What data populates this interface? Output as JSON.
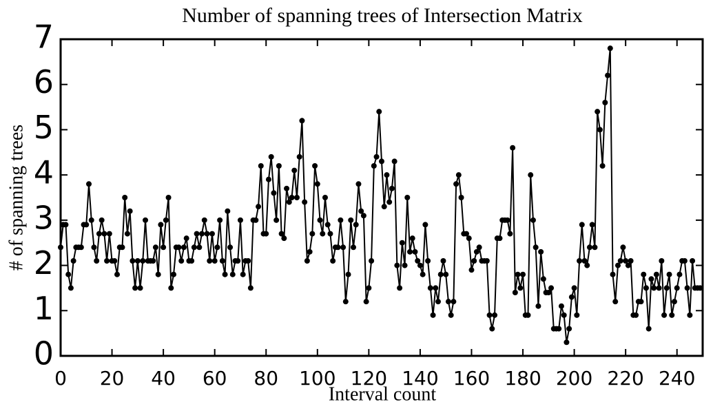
{
  "chart_data": {
    "type": "line",
    "title": "Number of spanning trees of Intersection Matrix",
    "xlabel": "Interval count",
    "ylabel": "# of spanning trees",
    "x": [
      0,
      1,
      2,
      3,
      4,
      5,
      6,
      7,
      8,
      9,
      10,
      11,
      12,
      13,
      14,
      15,
      16,
      17,
      18,
      19,
      20,
      21,
      22,
      23,
      24,
      25,
      26,
      27,
      28,
      29,
      30,
      31,
      32,
      33,
      34,
      35,
      36,
      37,
      38,
      39,
      40,
      41,
      42,
      43,
      44,
      45,
      46,
      47,
      48,
      49,
      50,
      51,
      52,
      53,
      54,
      55,
      56,
      57,
      58,
      59,
      60,
      61,
      62,
      63,
      64,
      65,
      66,
      67,
      68,
      69,
      70,
      71,
      72,
      73,
      74,
      75,
      76,
      77,
      78,
      79,
      80,
      81,
      82,
      83,
      84,
      85,
      86,
      87,
      88,
      89,
      90,
      91,
      92,
      93,
      94,
      95,
      96,
      97,
      98,
      99,
      100,
      101,
      102,
      103,
      104,
      105,
      106,
      107,
      108,
      109,
      110,
      111,
      112,
      113,
      114,
      115,
      116,
      117,
      118,
      119,
      120,
      121,
      122,
      123,
      124,
      125,
      126,
      127,
      128,
      129,
      130,
      131,
      132,
      133,
      134,
      135,
      136,
      137,
      138,
      139,
      140,
      141,
      142,
      143,
      144,
      145,
      146,
      147,
      148,
      149,
      150,
      151,
      152,
      153,
      154,
      155,
      156,
      157,
      158,
      159,
      160,
      161,
      162,
      163,
      164,
      165,
      166,
      167,
      168,
      169,
      170,
      171,
      172,
      173,
      174,
      175,
      176,
      177,
      178,
      179,
      180,
      181,
      182,
      183,
      184,
      185,
      186,
      187,
      188,
      189,
      190,
      191,
      192,
      193,
      194,
      195,
      196,
      197,
      198,
      199,
      200,
      201,
      202,
      203,
      204,
      205,
      206,
      207,
      208,
      209,
      210,
      211,
      212,
      213,
      214,
      215,
      216,
      217,
      218,
      219,
      220,
      221,
      222,
      223,
      224,
      225,
      226,
      227,
      228,
      229,
      230,
      231,
      232,
      233,
      234,
      235,
      236,
      237,
      238,
      239,
      240,
      241,
      242,
      243,
      244,
      245,
      246,
      247,
      248,
      249
    ],
    "series": [
      {
        "name": "spanning trees",
        "color": "#000000",
        "values": [
          2.4,
          2.9,
          2.9,
          1.8,
          1.5,
          2.1,
          2.4,
          2.4,
          2.4,
          2.9,
          2.9,
          3.8,
          3.0,
          2.4,
          2.1,
          2.7,
          3.0,
          2.7,
          2.1,
          2.7,
          2.1,
          2.1,
          1.8,
          2.4,
          2.4,
          3.5,
          2.7,
          3.2,
          2.1,
          1.5,
          2.1,
          1.5,
          2.1,
          3.0,
          2.1,
          2.1,
          2.1,
          2.4,
          1.8,
          2.9,
          2.4,
          3.0,
          3.5,
          1.5,
          1.8,
          2.4,
          2.4,
          2.1,
          2.4,
          2.6,
          2.1,
          2.1,
          2.4,
          2.7,
          2.4,
          2.7,
          3.0,
          2.7,
          2.1,
          2.7,
          2.1,
          2.4,
          3.0,
          2.1,
          1.8,
          3.2,
          2.4,
          1.8,
          2.1,
          2.1,
          3.0,
          1.8,
          2.1,
          2.1,
          1.5,
          3.0,
          3.0,
          3.3,
          4.2,
          2.7,
          2.7,
          3.9,
          4.4,
          3.6,
          3.0,
          4.2,
          2.7,
          2.6,
          3.7,
          3.4,
          3.5,
          4.1,
          3.5,
          4.4,
          5.2,
          3.4,
          2.1,
          2.3,
          2.7,
          4.2,
          3.8,
          3.0,
          2.7,
          3.5,
          2.9,
          2.7,
          2.1,
          2.4,
          2.4,
          3.0,
          2.4,
          1.2,
          1.8,
          3.0,
          2.4,
          2.9,
          3.8,
          3.2,
          3.1,
          1.2,
          1.5,
          2.1,
          4.2,
          4.4,
          5.4,
          4.3,
          3.3,
          4.0,
          3.4,
          3.7,
          4.3,
          2.0,
          1.5,
          2.5,
          2.0,
          3.5,
          2.3,
          2.6,
          2.3,
          2.1,
          2.0,
          1.8,
          2.9,
          2.1,
          1.5,
          0.9,
          1.5,
          1.2,
          1.8,
          2.1,
          1.8,
          1.2,
          0.9,
          1.2,
          3.8,
          4.0,
          3.5,
          2.7,
          2.7,
          2.6,
          1.9,
          2.1,
          2.3,
          2.4,
          2.1,
          2.1,
          2.1,
          0.9,
          0.6,
          0.9,
          2.6,
          2.6,
          3.0,
          3.0,
          3.0,
          2.7,
          4.6,
          1.4,
          1.8,
          1.5,
          1.8,
          0.9,
          0.9,
          4.0,
          3.0,
          2.4,
          1.1,
          2.3,
          1.7,
          1.4,
          1.4,
          1.5,
          0.6,
          0.6,
          0.6,
          1.1,
          0.9,
          0.3,
          0.6,
          1.3,
          1.5,
          0.9,
          2.1,
          2.9,
          2.1,
          2.0,
          2.4,
          2.9,
          2.4,
          5.4,
          5.0,
          4.2,
          5.6,
          6.2,
          6.8,
          1.8,
          1.2,
          2.0,
          2.1,
          2.4,
          2.1,
          2.0,
          2.1,
          0.9,
          0.9,
          1.2,
          1.2,
          1.8,
          1.5,
          0.6,
          1.7,
          1.5,
          1.8,
          1.5,
          2.1,
          0.9,
          1.5,
          1.8,
          0.9,
          1.2,
          1.5,
          1.8,
          2.1,
          2.1,
          1.5,
          0.9,
          2.1,
          1.5,
          1.5,
          1.5
        ]
      }
    ],
    "xlim": [
      0,
      250
    ],
    "xticks": [
      0,
      20,
      40,
      60,
      80,
      100,
      120,
      140,
      160,
      180,
      200,
      220,
      240
    ],
    "ylim": [
      0,
      7
    ],
    "yticks": [
      0,
      1,
      2,
      3,
      4,
      5,
      6,
      7
    ],
    "grid": false
  }
}
